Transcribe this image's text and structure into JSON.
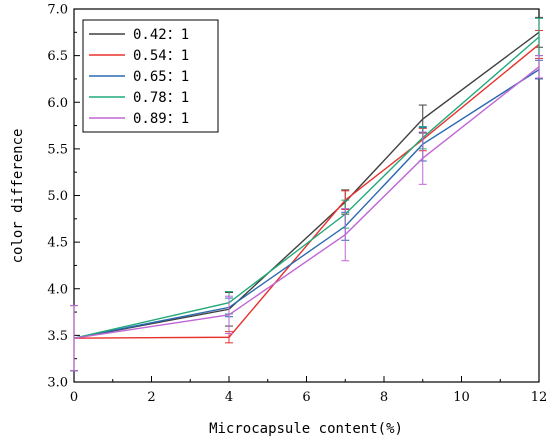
{
  "chart_data": {
    "type": "line",
    "xlabel": "Microcapsule content(%)",
    "ylabel": "color difference",
    "xlim": [
      0,
      12
    ],
    "ylim": [
      3.0,
      7.0
    ],
    "x_ticks": [
      "0",
      "2",
      "4",
      "6",
      "8",
      "10",
      "12"
    ],
    "y_ticks": [
      "3.0",
      "3.5",
      "4.0",
      "4.5",
      "5.0",
      "5.5",
      "6.0",
      "6.5",
      "7.0"
    ],
    "x": [
      0,
      4,
      7,
      9,
      12
    ],
    "grid": false,
    "legend_position": "top-left",
    "series": [
      {
        "name": "0.42：1",
        "color": "#404040",
        "values": [
          3.47,
          3.78,
          4.93,
          5.82,
          6.75
        ],
        "errors": [
          0.35,
          0.18,
          0.13,
          0.15,
          0.16
        ]
      },
      {
        "name": "0.54：1",
        "color": "#e8322e",
        "values": [
          3.47,
          3.48,
          4.95,
          5.6,
          6.62
        ],
        "errors": [
          0.35,
          0.06,
          0.1,
          0.12,
          0.15
        ]
      },
      {
        "name": "0.65：1",
        "color": "#2a6ab0",
        "values": [
          3.47,
          3.8,
          4.67,
          5.55,
          6.35
        ],
        "errors": [
          0.35,
          0.1,
          0.15,
          0.18,
          0.1
        ]
      },
      {
        "name": "0.78：1",
        "color": "#22aa7a",
        "values": [
          3.47,
          3.85,
          4.8,
          5.62,
          6.7
        ],
        "errors": [
          0.35,
          0.12,
          0.15,
          0.12,
          0.2
        ]
      },
      {
        "name": "0.89：1",
        "color": "#c066d6",
        "values": [
          3.47,
          3.72,
          4.58,
          5.4,
          6.38
        ],
        "errors": [
          0.35,
          0.2,
          0.28,
          0.28,
          0.12
        ]
      }
    ]
  }
}
